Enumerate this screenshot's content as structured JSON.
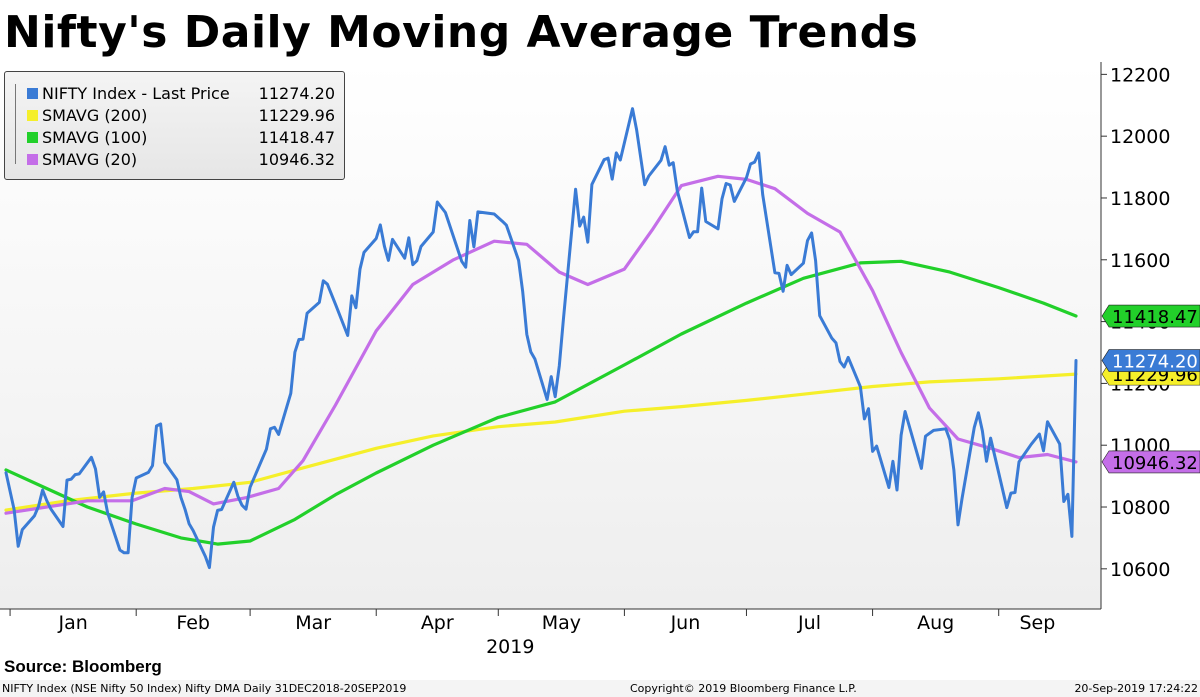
{
  "chart_data": {
    "type": "line",
    "title": "Nifty's Daily Moving Average Trends",
    "x_axis": {
      "month_labels": [
        "Jan",
        "Feb",
        "Mar",
        "Apr",
        "May",
        "Jun",
        "Jul",
        "Aug",
        "Sep"
      ],
      "year_label": "2019",
      "range": [
        "2018-12-31",
        "2019-09-20"
      ]
    },
    "y_axis": {
      "position": "right",
      "ticks": [
        10600,
        10800,
        11000,
        11200,
        11400,
        11600,
        11800,
        12000,
        12200
      ],
      "ylim": [
        10470,
        12240
      ],
      "grid": false
    },
    "legend_position": "top-left",
    "series": [
      {
        "name": "NIFTY Index - Last Price",
        "last_value_label": "11274.20",
        "color": "#3a7bd5",
        "points": [
          [
            "2018-12-31",
            10911
          ],
          [
            "2019-01-02",
            10792
          ],
          [
            "2019-01-03",
            10673
          ],
          [
            "2019-01-04",
            10727
          ],
          [
            "2019-01-07",
            10772
          ],
          [
            "2019-01-08",
            10802
          ],
          [
            "2019-01-09",
            10855
          ],
          [
            "2019-01-10",
            10821
          ],
          [
            "2019-01-11",
            10794
          ],
          [
            "2019-01-14",
            10737
          ],
          [
            "2019-01-15",
            10887
          ],
          [
            "2019-01-16",
            10890
          ],
          [
            "2019-01-17",
            10905
          ],
          [
            "2019-01-18",
            10907
          ],
          [
            "2019-01-21",
            10961
          ],
          [
            "2019-01-22",
            10923
          ],
          [
            "2019-01-23",
            10831
          ],
          [
            "2019-01-24",
            10849
          ],
          [
            "2019-01-25",
            10780
          ],
          [
            "2019-01-28",
            10661
          ],
          [
            "2019-01-29",
            10652
          ],
          [
            "2019-01-30",
            10652
          ],
          [
            "2019-01-31",
            10831
          ],
          [
            "2019-02-01",
            10894
          ],
          [
            "2019-02-04",
            10912
          ],
          [
            "2019-02-05",
            10934
          ],
          [
            "2019-02-06",
            11062
          ],
          [
            "2019-02-07",
            11069
          ],
          [
            "2019-02-08",
            10944
          ],
          [
            "2019-02-11",
            10888
          ],
          [
            "2019-02-12",
            10831
          ],
          [
            "2019-02-13",
            10793
          ],
          [
            "2019-02-14",
            10746
          ],
          [
            "2019-02-15",
            10724
          ],
          [
            "2019-02-18",
            10640
          ],
          [
            "2019-02-19",
            10604
          ],
          [
            "2019-02-20",
            10735
          ],
          [
            "2019-02-21",
            10789
          ],
          [
            "2019-02-22",
            10792
          ],
          [
            "2019-02-25",
            10880
          ],
          [
            "2019-02-26",
            10835
          ],
          [
            "2019-02-27",
            10806
          ],
          [
            "2019-02-28",
            10793
          ],
          [
            "2019-03-01",
            10864
          ],
          [
            "2019-03-05",
            10987
          ],
          [
            "2019-03-06",
            11053
          ],
          [
            "2019-03-07",
            11058
          ],
          [
            "2019-03-08",
            11035
          ],
          [
            "2019-03-11",
            11168
          ],
          [
            "2019-03-12",
            11301
          ],
          [
            "2019-03-13",
            11342
          ],
          [
            "2019-03-14",
            11343
          ],
          [
            "2019-03-15",
            11427
          ],
          [
            "2019-03-18",
            11462
          ],
          [
            "2019-03-19",
            11532
          ],
          [
            "2019-03-20",
            11521
          ],
          [
            "2019-03-22",
            11456
          ],
          [
            "2019-03-25",
            11355
          ],
          [
            "2019-03-26",
            11483
          ],
          [
            "2019-03-27",
            11445
          ],
          [
            "2019-03-28",
            11570
          ],
          [
            "2019-03-29",
            11624
          ],
          [
            "2019-04-01",
            11669
          ],
          [
            "2019-04-02",
            11713
          ],
          [
            "2019-04-03",
            11644
          ],
          [
            "2019-04-04",
            11598
          ],
          [
            "2019-04-05",
            11666
          ],
          [
            "2019-04-08",
            11605
          ],
          [
            "2019-04-09",
            11671
          ],
          [
            "2019-04-10",
            11584
          ],
          [
            "2019-04-11",
            11597
          ],
          [
            "2019-04-12",
            11643
          ],
          [
            "2019-04-15",
            11690
          ],
          [
            "2019-04-16",
            11787
          ],
          [
            "2019-04-18",
            11753
          ],
          [
            "2019-04-22",
            11595
          ],
          [
            "2019-04-23",
            11576
          ],
          [
            "2019-04-24",
            11727
          ],
          [
            "2019-04-25",
            11642
          ],
          [
            "2019-04-26",
            11755
          ],
          [
            "2019-04-30",
            11748
          ],
          [
            "2019-05-02",
            11725
          ],
          [
            "2019-05-03",
            11712
          ],
          [
            "2019-05-06",
            11598
          ],
          [
            "2019-05-07",
            11497
          ],
          [
            "2019-05-08",
            11359
          ],
          [
            "2019-05-09",
            11302
          ],
          [
            "2019-05-10",
            11279
          ],
          [
            "2019-05-13",
            11148
          ],
          [
            "2019-05-14",
            11222
          ],
          [
            "2019-05-15",
            11157
          ],
          [
            "2019-05-16",
            11257
          ],
          [
            "2019-05-17",
            11407
          ],
          [
            "2019-05-20",
            11828
          ],
          [
            "2019-05-21",
            11709
          ],
          [
            "2019-05-22",
            11738
          ],
          [
            "2019-05-23",
            11657
          ],
          [
            "2019-05-24",
            11844
          ],
          [
            "2019-05-27",
            11924
          ],
          [
            "2019-05-28",
            11929
          ],
          [
            "2019-05-29",
            11861
          ],
          [
            "2019-05-30",
            11946
          ],
          [
            "2019-05-31",
            11923
          ],
          [
            "2019-06-03",
            12089
          ],
          [
            "2019-06-04",
            12021
          ],
          [
            "2019-06-06",
            11843
          ],
          [
            "2019-06-07",
            11871
          ],
          [
            "2019-06-10",
            11922
          ],
          [
            "2019-06-11",
            11966
          ],
          [
            "2019-06-12",
            11906
          ],
          [
            "2019-06-13",
            11914
          ],
          [
            "2019-06-14",
            11823
          ],
          [
            "2019-06-17",
            11672
          ],
          [
            "2019-06-18",
            11691
          ],
          [
            "2019-06-19",
            11691
          ],
          [
            "2019-06-20",
            11832
          ],
          [
            "2019-06-21",
            11724
          ],
          [
            "2019-06-24",
            11700
          ],
          [
            "2019-06-25",
            11797
          ],
          [
            "2019-06-26",
            11847
          ],
          [
            "2019-06-27",
            11842
          ],
          [
            "2019-06-28",
            11789
          ],
          [
            "2019-07-01",
            11866
          ],
          [
            "2019-07-02",
            11910
          ],
          [
            "2019-07-03",
            11916
          ],
          [
            "2019-07-04",
            11946
          ],
          [
            "2019-07-05",
            11811
          ],
          [
            "2019-07-08",
            11558
          ],
          [
            "2019-07-09",
            11556
          ],
          [
            "2019-07-10",
            11498
          ],
          [
            "2019-07-11",
            11582
          ],
          [
            "2019-07-12",
            11552
          ],
          [
            "2019-07-15",
            11589
          ],
          [
            "2019-07-16",
            11662
          ],
          [
            "2019-07-17",
            11687
          ],
          [
            "2019-07-18",
            11597
          ],
          [
            "2019-07-19",
            11419
          ],
          [
            "2019-07-22",
            11346
          ],
          [
            "2019-07-23",
            11331
          ],
          [
            "2019-07-24",
            11271
          ],
          [
            "2019-07-25",
            11253
          ],
          [
            "2019-07-26",
            11284
          ],
          [
            "2019-07-29",
            11189
          ],
          [
            "2019-07-30",
            11085
          ],
          [
            "2019-07-31",
            11118
          ],
          [
            "2019-08-01",
            10980
          ],
          [
            "2019-08-02",
            10997
          ],
          [
            "2019-08-05",
            10863
          ],
          [
            "2019-08-06",
            10948
          ],
          [
            "2019-08-07",
            10855
          ],
          [
            "2019-08-08",
            11032
          ],
          [
            "2019-08-09",
            11109
          ],
          [
            "2019-08-13",
            10925
          ],
          [
            "2019-08-14",
            11029
          ],
          [
            "2019-08-16",
            11048
          ],
          [
            "2019-08-19",
            11053
          ],
          [
            "2019-08-20",
            11017
          ],
          [
            "2019-08-21",
            10919
          ],
          [
            "2019-08-22",
            10742
          ],
          [
            "2019-08-23",
            10829
          ],
          [
            "2019-08-26",
            11058
          ],
          [
            "2019-08-27",
            11105
          ],
          [
            "2019-08-28",
            11046
          ],
          [
            "2019-08-29",
            10948
          ],
          [
            "2019-08-30",
            11023
          ],
          [
            "2019-09-03",
            10798
          ],
          [
            "2019-09-04",
            10845
          ],
          [
            "2019-09-05",
            10847
          ],
          [
            "2019-09-06",
            10946
          ],
          [
            "2019-09-09",
            11003
          ],
          [
            "2019-09-11",
            11036
          ],
          [
            "2019-09-12",
            10982
          ],
          [
            "2019-09-13",
            11076
          ],
          [
            "2019-09-16",
            11004
          ],
          [
            "2019-09-17",
            10818
          ],
          [
            "2019-09-18",
            10841
          ],
          [
            "2019-09-19",
            10705
          ],
          [
            "2019-09-20",
            11274
          ]
        ]
      },
      {
        "name": "SMAVG (200)",
        "last_value_label": "11229.96",
        "color": "#f5ef2a",
        "points": [
          [
            "2018-12-31",
            10790
          ],
          [
            "2019-01-15",
            10820
          ],
          [
            "2019-02-01",
            10845
          ],
          [
            "2019-02-15",
            10860
          ],
          [
            "2019-03-01",
            10880
          ],
          [
            "2019-03-15",
            10930
          ],
          [
            "2019-04-01",
            10990
          ],
          [
            "2019-04-15",
            11030
          ],
          [
            "2019-05-01",
            11060
          ],
          [
            "2019-05-15",
            11075
          ],
          [
            "2019-06-01",
            11110
          ],
          [
            "2019-06-15",
            11125
          ],
          [
            "2019-07-01",
            11145
          ],
          [
            "2019-07-15",
            11165
          ],
          [
            "2019-08-01",
            11190
          ],
          [
            "2019-08-15",
            11205
          ],
          [
            "2019-09-01",
            11215
          ],
          [
            "2019-09-20",
            11230
          ]
        ]
      },
      {
        "name": "SMAVG (100)",
        "last_value_label": "11418.47",
        "color": "#22d02a",
        "points": [
          [
            "2018-12-31",
            10920
          ],
          [
            "2019-01-10",
            10860
          ],
          [
            "2019-01-20",
            10800
          ],
          [
            "2019-02-01",
            10745
          ],
          [
            "2019-02-12",
            10700
          ],
          [
            "2019-02-21",
            10680
          ],
          [
            "2019-03-01",
            10690
          ],
          [
            "2019-03-12",
            10760
          ],
          [
            "2019-03-22",
            10840
          ],
          [
            "2019-04-01",
            10910
          ],
          [
            "2019-04-15",
            11000
          ],
          [
            "2019-05-01",
            11090
          ],
          [
            "2019-05-15",
            11140
          ],
          [
            "2019-06-01",
            11260
          ],
          [
            "2019-06-15",
            11360
          ],
          [
            "2019-07-01",
            11460
          ],
          [
            "2019-07-15",
            11540
          ],
          [
            "2019-07-29",
            11590
          ],
          [
            "2019-08-08",
            11595
          ],
          [
            "2019-08-20",
            11560
          ],
          [
            "2019-09-01",
            11510
          ],
          [
            "2019-09-12",
            11460
          ],
          [
            "2019-09-20",
            11418
          ]
        ]
      },
      {
        "name": "SMAVG (20)",
        "last_value_label": "10946.32",
        "color": "#c46ee8",
        "points": [
          [
            "2018-12-31",
            10780
          ],
          [
            "2019-01-10",
            10800
          ],
          [
            "2019-01-20",
            10820
          ],
          [
            "2019-01-31",
            10820
          ],
          [
            "2019-02-08",
            10860
          ],
          [
            "2019-02-14",
            10850
          ],
          [
            "2019-02-20",
            10810
          ],
          [
            "2019-02-28",
            10830
          ],
          [
            "2019-03-08",
            10860
          ],
          [
            "2019-03-14",
            10950
          ],
          [
            "2019-03-22",
            11130
          ],
          [
            "2019-04-01",
            11370
          ],
          [
            "2019-04-10",
            11520
          ],
          [
            "2019-04-20",
            11600
          ],
          [
            "2019-04-30",
            11660
          ],
          [
            "2019-05-08",
            11650
          ],
          [
            "2019-05-16",
            11560
          ],
          [
            "2019-05-23",
            11520
          ],
          [
            "2019-06-01",
            11570
          ],
          [
            "2019-06-08",
            11700
          ],
          [
            "2019-06-15",
            11840
          ],
          [
            "2019-06-24",
            11870
          ],
          [
            "2019-07-01",
            11860
          ],
          [
            "2019-07-08",
            11830
          ],
          [
            "2019-07-16",
            11750
          ],
          [
            "2019-07-24",
            11690
          ],
          [
            "2019-08-01",
            11500
          ],
          [
            "2019-08-08",
            11300
          ],
          [
            "2019-08-15",
            11120
          ],
          [
            "2019-08-22",
            11020
          ],
          [
            "2019-08-30",
            10990
          ],
          [
            "2019-09-06",
            10960
          ],
          [
            "2019-09-13",
            10970
          ],
          [
            "2019-09-20",
            10946
          ]
        ]
      }
    ]
  },
  "source": "Source: Bloomberg",
  "footer": {
    "left": "NIFTY Index (NSE Nifty 50 Index) Nifty DMA  Daily 31DEC2018-20SEP2019",
    "center": "Copyright© 2019 Bloomberg Finance L.P.",
    "right": "20-Sep-2019 17:24:22"
  }
}
